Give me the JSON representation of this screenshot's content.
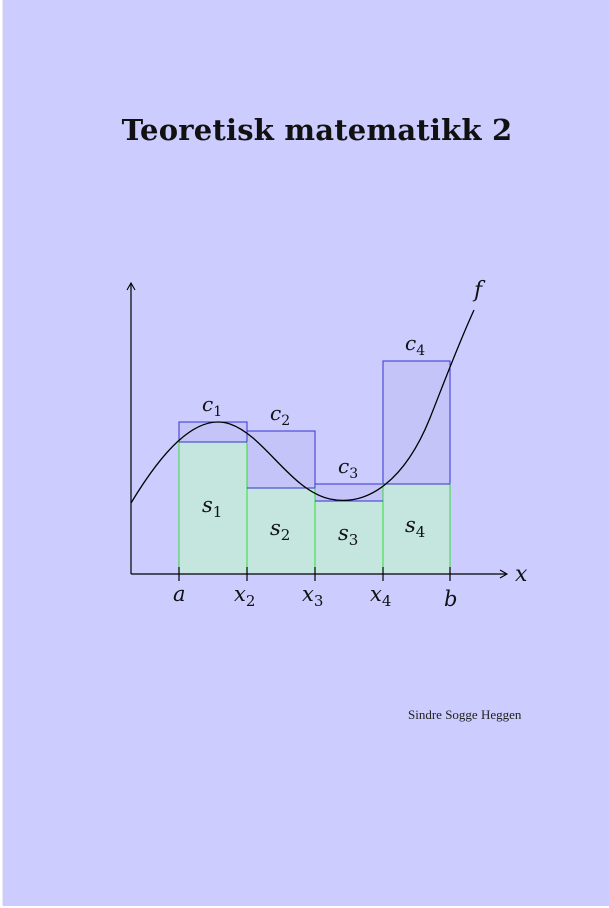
{
  "cover": {
    "title": "Teoretisk matematikk 2",
    "author": "Sindre Sogge Heggen"
  },
  "figure": {
    "function_label": "f",
    "x_axis_label": "x",
    "tick_labels": [
      {
        "base": "a",
        "sub": ""
      },
      {
        "base": "x",
        "sub": "2"
      },
      {
        "base": "x",
        "sub": "3"
      },
      {
        "base": "x",
        "sub": "4"
      },
      {
        "base": "b",
        "sub": ""
      }
    ],
    "upper_labels": [
      {
        "base": "c",
        "sub": "1"
      },
      {
        "base": "c",
        "sub": "2"
      },
      {
        "base": "c",
        "sub": "3"
      },
      {
        "base": "c",
        "sub": "4"
      }
    ],
    "lower_labels": [
      {
        "base": "s",
        "sub": "1"
      },
      {
        "base": "s",
        "sub": "2"
      },
      {
        "base": "s",
        "sub": "3"
      },
      {
        "base": "s",
        "sub": "4"
      }
    ],
    "colors": {
      "background": "#ccccff",
      "lower_fill": "#c4e6de",
      "lower_stroke": "#33dd33",
      "upper_fill": "#c4c4f8",
      "upper_stroke": "#3333cc",
      "curve": "#000000"
    }
  }
}
